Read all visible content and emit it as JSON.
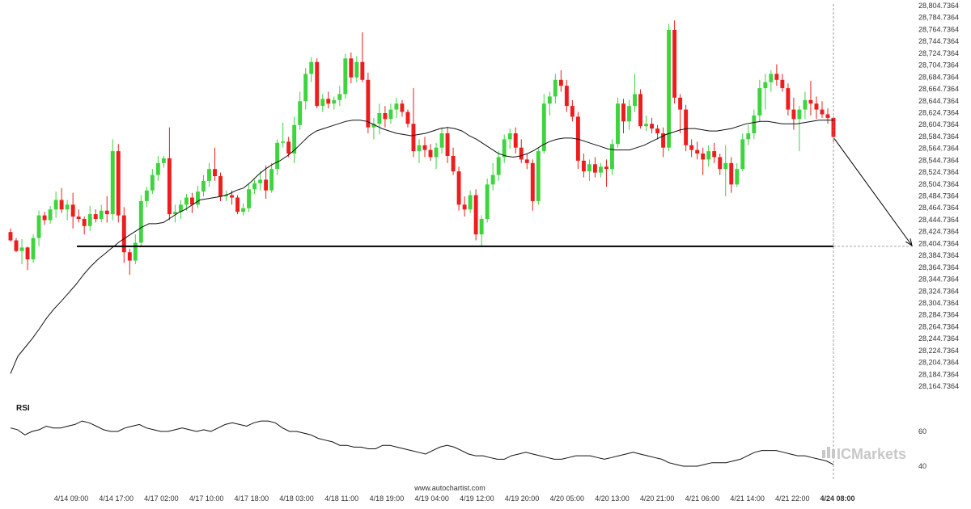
{
  "chart_data": {
    "type": "candlestick",
    "title": "",
    "price_axis": {
      "ticks": [
        "28,804.7364",
        "28,784.7364",
        "28,764.7364",
        "28,744.7364",
        "28,724.7364",
        "28,704.7364",
        "28,684.7364",
        "28,664.7364",
        "28,644.7364",
        "28,624.7364",
        "28,604.7364",
        "28,584.7364",
        "28,564.7364",
        "28,544.7364",
        "28,524.7364",
        "28,504.7364",
        "28,484.7364",
        "28,464.7364",
        "28,444.7364",
        "28,424.7364",
        "28,404.7364",
        "28,384.7364",
        "28,364.7364",
        "28,344.7364",
        "28,324.7364",
        "28,304.7364",
        "28,284.7364",
        "28,264.7364",
        "28,244.7364",
        "28,224.7364",
        "28,204.7364",
        "28,184.7364",
        "28,164.7364"
      ],
      "range": [
        28164.7364,
        28804.7364
      ]
    },
    "time_axis": {
      "labels": [
        "4/14 09:00",
        "4/14 17:00",
        "4/17 02:00",
        "4/17 10:00",
        "4/17 18:00",
        "4/18 03:00",
        "4/18 11:00",
        "4/18 19:00",
        "4/19 04:00",
        "4/19 12:00",
        "4/19 20:00",
        "4/20 05:00",
        "4/20 13:00",
        "4/20 21:00",
        "4/21 06:00",
        "4/21 14:00",
        "4/21 22:00",
        "4/24 08:00"
      ],
      "highlighted": "4/24 08:00"
    },
    "support_level": 28400.0,
    "projection_target": 28400.0,
    "colors": {
      "up": "#3ed43e",
      "down": "#ee1c1c",
      "ma": "#111111",
      "level": "#000000"
    },
    "candles": [
      {
        "o": 28424,
        "h": 28430,
        "l": 28408,
        "c": 28410
      },
      {
        "o": 28410,
        "h": 28414,
        "l": 28390,
        "c": 28392
      },
      {
        "o": 28392,
        "h": 28412,
        "l": 28370,
        "c": 28398
      },
      {
        "o": 28398,
        "h": 28400,
        "l": 28360,
        "c": 28378
      },
      {
        "o": 28378,
        "h": 28420,
        "l": 28372,
        "c": 28414
      },
      {
        "o": 28414,
        "h": 28460,
        "l": 28400,
        "c": 28452
      },
      {
        "o": 28452,
        "h": 28458,
        "l": 28436,
        "c": 28444
      },
      {
        "o": 28444,
        "h": 28468,
        "l": 28438,
        "c": 28462
      },
      {
        "o": 28462,
        "h": 28492,
        "l": 28448,
        "c": 28478
      },
      {
        "o": 28478,
        "h": 28498,
        "l": 28456,
        "c": 28462
      },
      {
        "o": 28462,
        "h": 28478,
        "l": 28444,
        "c": 28470
      },
      {
        "o": 28470,
        "h": 28490,
        "l": 28430,
        "c": 28450
      },
      {
        "o": 28450,
        "h": 28462,
        "l": 28440,
        "c": 28446
      },
      {
        "o": 28446,
        "h": 28450,
        "l": 28420,
        "c": 28434
      },
      {
        "o": 28434,
        "h": 28468,
        "l": 28426,
        "c": 28454
      },
      {
        "o": 28454,
        "h": 28462,
        "l": 28440,
        "c": 28446
      },
      {
        "o": 28446,
        "h": 28470,
        "l": 28440,
        "c": 28460
      },
      {
        "o": 28460,
        "h": 28484,
        "l": 28440,
        "c": 28454
      },
      {
        "o": 28454,
        "h": 28580,
        "l": 28444,
        "c": 28560
      },
      {
        "o": 28560,
        "h": 28572,
        "l": 28440,
        "c": 28452
      },
      {
        "o": 28452,
        "h": 28466,
        "l": 28372,
        "c": 28390
      },
      {
        "o": 28390,
        "h": 28396,
        "l": 28352,
        "c": 28376
      },
      {
        "o": 28376,
        "h": 28420,
        "l": 28370,
        "c": 28406
      },
      {
        "o": 28406,
        "h": 28486,
        "l": 28400,
        "c": 28476
      },
      {
        "o": 28476,
        "h": 28500,
        "l": 28466,
        "c": 28494
      },
      {
        "o": 28494,
        "h": 28530,
        "l": 28488,
        "c": 28520
      },
      {
        "o": 28520,
        "h": 28552,
        "l": 28510,
        "c": 28540
      },
      {
        "o": 28540,
        "h": 28552,
        "l": 28532,
        "c": 28548
      },
      {
        "o": 28548,
        "h": 28600,
        "l": 28444,
        "c": 28454
      },
      {
        "o": 28454,
        "h": 28470,
        "l": 28440,
        "c": 28458
      },
      {
        "o": 28458,
        "h": 28478,
        "l": 28446,
        "c": 28470
      },
      {
        "o": 28470,
        "h": 28488,
        "l": 28460,
        "c": 28482
      },
      {
        "o": 28482,
        "h": 28490,
        "l": 28456,
        "c": 28470
      },
      {
        "o": 28470,
        "h": 28502,
        "l": 28464,
        "c": 28492
      },
      {
        "o": 28492,
        "h": 28520,
        "l": 28484,
        "c": 28510
      },
      {
        "o": 28510,
        "h": 28540,
        "l": 28500,
        "c": 28530
      },
      {
        "o": 28530,
        "h": 28566,
        "l": 28510,
        "c": 28518
      },
      {
        "o": 28518,
        "h": 28524,
        "l": 28476,
        "c": 28484
      },
      {
        "o": 28484,
        "h": 28494,
        "l": 28476,
        "c": 28486
      },
      {
        "o": 28486,
        "h": 28494,
        "l": 28470,
        "c": 28482
      },
      {
        "o": 28482,
        "h": 28486,
        "l": 28454,
        "c": 28458
      },
      {
        "o": 28458,
        "h": 28472,
        "l": 28452,
        "c": 28464
      },
      {
        "o": 28464,
        "h": 28504,
        "l": 28458,
        "c": 28496
      },
      {
        "o": 28496,
        "h": 28512,
        "l": 28488,
        "c": 28506
      },
      {
        "o": 28506,
        "h": 28526,
        "l": 28494,
        "c": 28512
      },
      {
        "o": 28512,
        "h": 28536,
        "l": 28480,
        "c": 28494
      },
      {
        "o": 28494,
        "h": 28540,
        "l": 28490,
        "c": 28530
      },
      {
        "o": 28530,
        "h": 28580,
        "l": 28520,
        "c": 28574
      },
      {
        "o": 28574,
        "h": 28608,
        "l": 28566,
        "c": 28576
      },
      {
        "o": 28576,
        "h": 28584,
        "l": 28550,
        "c": 28556
      },
      {
        "o": 28556,
        "h": 28618,
        "l": 28540,
        "c": 28604
      },
      {
        "o": 28604,
        "h": 28660,
        "l": 28596,
        "c": 28644
      },
      {
        "o": 28644,
        "h": 28700,
        "l": 28630,
        "c": 28690
      },
      {
        "o": 28690,
        "h": 28718,
        "l": 28676,
        "c": 28710
      },
      {
        "o": 28710,
        "h": 28716,
        "l": 28632,
        "c": 28636
      },
      {
        "o": 28636,
        "h": 28656,
        "l": 28626,
        "c": 28648
      },
      {
        "o": 28648,
        "h": 28660,
        "l": 28632,
        "c": 28640
      },
      {
        "o": 28640,
        "h": 28652,
        "l": 28630,
        "c": 28646
      },
      {
        "o": 28646,
        "h": 28670,
        "l": 28636,
        "c": 28656
      },
      {
        "o": 28656,
        "h": 28724,
        "l": 28648,
        "c": 28716
      },
      {
        "o": 28716,
        "h": 28726,
        "l": 28674,
        "c": 28684
      },
      {
        "o": 28684,
        "h": 28720,
        "l": 28676,
        "c": 28710
      },
      {
        "o": 28710,
        "h": 28760,
        "l": 28676,
        "c": 28680
      },
      {
        "o": 28680,
        "h": 28692,
        "l": 28590,
        "c": 28600
      },
      {
        "o": 28600,
        "h": 28616,
        "l": 28580,
        "c": 28606
      },
      {
        "o": 28606,
        "h": 28640,
        "l": 28588,
        "c": 28624
      },
      {
        "o": 28624,
        "h": 28636,
        "l": 28600,
        "c": 28614
      },
      {
        "o": 28614,
        "h": 28640,
        "l": 28606,
        "c": 28630
      },
      {
        "o": 28630,
        "h": 28650,
        "l": 28616,
        "c": 28640
      },
      {
        "o": 28640,
        "h": 28646,
        "l": 28618,
        "c": 28626
      },
      {
        "o": 28626,
        "h": 28630,
        "l": 28600,
        "c": 28606
      },
      {
        "o": 28606,
        "h": 28666,
        "l": 28550,
        "c": 28560
      },
      {
        "o": 28560,
        "h": 28580,
        "l": 28540,
        "c": 28570
      },
      {
        "o": 28570,
        "h": 28584,
        "l": 28550,
        "c": 28562
      },
      {
        "o": 28562,
        "h": 28572,
        "l": 28544,
        "c": 28550
      },
      {
        "o": 28550,
        "h": 28574,
        "l": 28530,
        "c": 28566
      },
      {
        "o": 28566,
        "h": 28600,
        "l": 28556,
        "c": 28590
      },
      {
        "o": 28590,
        "h": 28600,
        "l": 28540,
        "c": 28552
      },
      {
        "o": 28552,
        "h": 28566,
        "l": 28520,
        "c": 28526
      },
      {
        "o": 28526,
        "h": 28534,
        "l": 28460,
        "c": 28470
      },
      {
        "o": 28470,
        "h": 28484,
        "l": 28450,
        "c": 28462
      },
      {
        "o": 28462,
        "h": 28494,
        "l": 28456,
        "c": 28486
      },
      {
        "o": 28486,
        "h": 28496,
        "l": 28410,
        "c": 28420
      },
      {
        "o": 28420,
        "h": 28452,
        "l": 28400,
        "c": 28446
      },
      {
        "o": 28446,
        "h": 28514,
        "l": 28440,
        "c": 28504
      },
      {
        "o": 28504,
        "h": 28540,
        "l": 28494,
        "c": 28520
      },
      {
        "o": 28520,
        "h": 28560,
        "l": 28510,
        "c": 28550
      },
      {
        "o": 28550,
        "h": 28588,
        "l": 28540,
        "c": 28580
      },
      {
        "o": 28580,
        "h": 28598,
        "l": 28564,
        "c": 28590
      },
      {
        "o": 28590,
        "h": 28600,
        "l": 28556,
        "c": 28566
      },
      {
        "o": 28566,
        "h": 28580,
        "l": 28540,
        "c": 28546
      },
      {
        "o": 28546,
        "h": 28556,
        "l": 28530,
        "c": 28540
      },
      {
        "o": 28540,
        "h": 28546,
        "l": 28460,
        "c": 28476
      },
      {
        "o": 28476,
        "h": 28566,
        "l": 28470,
        "c": 28560
      },
      {
        "o": 28560,
        "h": 28656,
        "l": 28556,
        "c": 28640
      },
      {
        "o": 28640,
        "h": 28660,
        "l": 28620,
        "c": 28652
      },
      {
        "o": 28652,
        "h": 28690,
        "l": 28640,
        "c": 28680
      },
      {
        "o": 28680,
        "h": 28696,
        "l": 28660,
        "c": 28670
      },
      {
        "o": 28670,
        "h": 28680,
        "l": 28626,
        "c": 28636
      },
      {
        "o": 28636,
        "h": 28646,
        "l": 28610,
        "c": 28618
      },
      {
        "o": 28618,
        "h": 28626,
        "l": 28530,
        "c": 28544
      },
      {
        "o": 28544,
        "h": 28556,
        "l": 28516,
        "c": 28526
      },
      {
        "o": 28526,
        "h": 28546,
        "l": 28510,
        "c": 28538
      },
      {
        "o": 28538,
        "h": 28550,
        "l": 28516,
        "c": 28524
      },
      {
        "o": 28524,
        "h": 28540,
        "l": 28516,
        "c": 28534
      },
      {
        "o": 28534,
        "h": 28546,
        "l": 28500,
        "c": 28530
      },
      {
        "o": 28530,
        "h": 28580,
        "l": 28520,
        "c": 28572
      },
      {
        "o": 28572,
        "h": 28650,
        "l": 28566,
        "c": 28640
      },
      {
        "o": 28640,
        "h": 28648,
        "l": 28590,
        "c": 28610
      },
      {
        "o": 28610,
        "h": 28646,
        "l": 28596,
        "c": 28636
      },
      {
        "o": 28636,
        "h": 28690,
        "l": 28626,
        "c": 28656
      },
      {
        "o": 28656,
        "h": 28664,
        "l": 28598,
        "c": 28602
      },
      {
        "o": 28602,
        "h": 28620,
        "l": 28594,
        "c": 28606
      },
      {
        "o": 28606,
        "h": 28616,
        "l": 28590,
        "c": 28598
      },
      {
        "o": 28598,
        "h": 28604,
        "l": 28580,
        "c": 28590
      },
      {
        "o": 28590,
        "h": 28600,
        "l": 28550,
        "c": 28566
      },
      {
        "o": 28566,
        "h": 28774,
        "l": 28560,
        "c": 28764
      },
      {
        "o": 28764,
        "h": 28780,
        "l": 28640,
        "c": 28650
      },
      {
        "o": 28650,
        "h": 28656,
        "l": 28590,
        "c": 28630
      },
      {
        "o": 28630,
        "h": 28638,
        "l": 28560,
        "c": 28570
      },
      {
        "o": 28570,
        "h": 28580,
        "l": 28550,
        "c": 28562
      },
      {
        "o": 28562,
        "h": 28576,
        "l": 28546,
        "c": 28556
      },
      {
        "o": 28556,
        "h": 28566,
        "l": 28520,
        "c": 28546
      },
      {
        "o": 28546,
        "h": 28570,
        "l": 28534,
        "c": 28560
      },
      {
        "o": 28560,
        "h": 28574,
        "l": 28540,
        "c": 28550
      },
      {
        "o": 28550,
        "h": 28556,
        "l": 28520,
        "c": 28530
      },
      {
        "o": 28530,
        "h": 28570,
        "l": 28484,
        "c": 28540
      },
      {
        "o": 28540,
        "h": 28550,
        "l": 28490,
        "c": 28504
      },
      {
        "o": 28504,
        "h": 28540,
        "l": 28500,
        "c": 28530
      },
      {
        "o": 28530,
        "h": 28590,
        "l": 28526,
        "c": 28580
      },
      {
        "o": 28580,
        "h": 28604,
        "l": 28570,
        "c": 28590
      },
      {
        "o": 28590,
        "h": 28630,
        "l": 28580,
        "c": 28620
      },
      {
        "o": 28620,
        "h": 28680,
        "l": 28610,
        "c": 28666
      },
      {
        "o": 28666,
        "h": 28690,
        "l": 28630,
        "c": 28676
      },
      {
        "o": 28676,
        "h": 28696,
        "l": 28660,
        "c": 28690
      },
      {
        "o": 28690,
        "h": 28706,
        "l": 28670,
        "c": 28680
      },
      {
        "o": 28680,
        "h": 28690,
        "l": 28660,
        "c": 28666
      },
      {
        "o": 28666,
        "h": 28674,
        "l": 28620,
        "c": 28630
      },
      {
        "o": 28630,
        "h": 28650,
        "l": 28596,
        "c": 28614
      },
      {
        "o": 28614,
        "h": 28636,
        "l": 28560,
        "c": 28630
      },
      {
        "o": 28630,
        "h": 28660,
        "l": 28614,
        "c": 28646
      },
      {
        "o": 28646,
        "h": 28678,
        "l": 28620,
        "c": 28640
      },
      {
        "o": 28640,
        "h": 28652,
        "l": 28614,
        "c": 28630
      },
      {
        "o": 28630,
        "h": 28644,
        "l": 28616,
        "c": 28622
      },
      {
        "o": 28622,
        "h": 28632,
        "l": 28606,
        "c": 28616
      },
      {
        "o": 28616,
        "h": 28618,
        "l": 28576,
        "c": 28584
      }
    ],
    "ma": [
      28186,
      28215,
      28230,
      28245,
      28262,
      28280,
      28295,
      28308,
      28322,
      28336,
      28352,
      28366,
      28378,
      28388,
      28398,
      28408,
      28416,
      28424,
      28432,
      28438,
      28438,
      28440,
      28448,
      28456,
      28462,
      28470,
      28478,
      28480,
      28482,
      28484,
      28488,
      28494,
      28498,
      28508,
      28520,
      28530,
      28538,
      28544,
      28552,
      28562,
      28574,
      28586,
      28594,
      28598,
      28602,
      28606,
      28610,
      28612,
      28612,
      28610,
      28604,
      28598,
      28594,
      28590,
      28588,
      28586,
      28588,
      28590,
      28594,
      28598,
      28600,
      28598,
      28594,
      28586,
      28580,
      28572,
      28564,
      28556,
      28552,
      28550,
      28552,
      28556,
      28562,
      28570,
      28576,
      28580,
      28582,
      28582,
      28580,
      28576,
      28572,
      28568,
      28564,
      28562,
      28562,
      28562,
      28566,
      28570,
      28576,
      28582,
      28588,
      28592,
      28596,
      28598,
      28598,
      28596,
      28594,
      28594,
      28596,
      28598,
      28602,
      28606,
      28608,
      28610,
      28610,
      28608,
      28606,
      28606,
      28606,
      28608,
      28610,
      28612,
      28612,
      28612
    ],
    "rsi": {
      "label": "RSI",
      "ticks": [
        60,
        40
      ],
      "values": [
        62,
        61,
        58,
        60,
        61,
        63,
        62,
        62,
        63,
        64,
        66,
        65,
        63,
        61,
        60,
        60,
        62,
        63,
        64,
        62,
        61,
        60,
        60,
        61,
        62,
        61,
        60,
        61,
        60,
        62,
        64,
        65,
        64,
        63,
        65,
        66,
        66,
        65,
        62,
        60,
        60,
        59,
        58,
        56,
        55,
        54,
        52,
        52,
        51,
        51,
        50,
        50,
        52,
        52,
        51,
        50,
        49,
        48,
        47,
        49,
        51,
        52,
        51,
        49,
        47,
        46,
        46,
        45,
        44,
        44,
        46,
        47,
        48,
        47,
        46,
        45,
        44,
        44,
        45,
        46,
        46,
        46,
        45,
        44,
        45,
        46,
        47,
        48,
        47,
        46,
        45,
        44,
        42,
        41,
        40,
        40,
        40,
        41,
        42,
        42,
        42,
        43,
        44,
        46,
        48,
        49,
        49,
        49,
        48,
        47,
        46,
        46,
        45,
        44,
        43,
        41
      ]
    }
  },
  "footer_text": "www.autochartist.com",
  "brand_logo": {
    "icon_name": "ic-markets-logo",
    "text": "ICMarkets"
  }
}
